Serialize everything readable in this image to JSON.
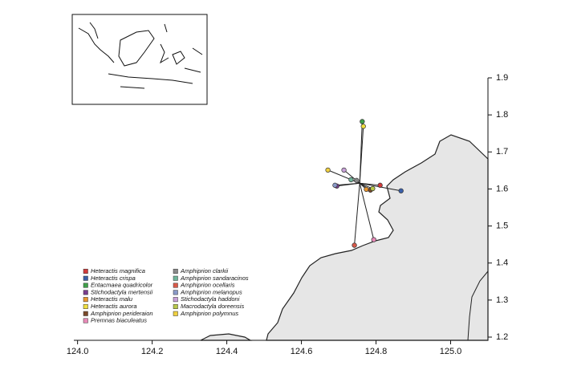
{
  "chart_data": {
    "type": "scatter",
    "xlim": [
      123.99,
      125.1
    ],
    "ylim": [
      1.2,
      1.9
    ],
    "xticks": [
      {
        "value": 124.0,
        "label": "124.0"
      },
      124.2,
      124.4,
      124.6,
      124.8,
      {
        "value": 125.0,
        "label": "125.0"
      }
    ],
    "yticks": [
      1.2,
      1.3,
      1.4,
      1.5,
      1.6,
      1.7,
      1.8,
      1.9
    ],
    "series": [
      {
        "name": "Heteractis magnifica",
        "color": "#d23b3b",
        "x": [
          124.811
        ],
        "y": [
          1.61
        ]
      },
      {
        "name": "Heteractis crispa",
        "color": "#3a5fa8",
        "x": [
          124.867
        ],
        "y": [
          1.595
        ]
      },
      {
        "name": "Entacmaea quadricolor",
        "color": "#3fa04a",
        "x": [
          124.763
        ],
        "y": [
          1.782
        ]
      },
      {
        "name": "Stichodactyla mertensii",
        "color": "#7a3e8e",
        "x": [
          124.695
        ],
        "y": [
          1.608
        ]
      },
      {
        "name": "Heteractis malu",
        "color": "#e8962e",
        "x": [
          124.774
        ],
        "y": [
          1.599
        ]
      },
      {
        "name": "Heteractis aurora",
        "color": "#f0e040",
        "x": [
          124.766
        ],
        "y": [
          1.769
        ]
      },
      {
        "name": "Amphiprion perideraion",
        "color": "#7a4a2a",
        "x": [
          124.785
        ],
        "y": [
          1.597
        ]
      },
      {
        "name": "Premnas biaculeatus",
        "color": "#e88ab8",
        "x": [
          124.794
        ],
        "y": [
          1.463
        ]
      },
      {
        "name": "Amphiprion clarkii",
        "color": "#8a8a8a",
        "x": [
          124.748
        ],
        "y": [
          1.623
        ]
      },
      {
        "name": "Amphiprion sandaracinos",
        "color": "#6fb59a",
        "x": [
          124.733
        ],
        "y": [
          1.625
        ]
      },
      {
        "name": "Amphiprion ocellaris",
        "color": "#d85a4a",
        "x": [
          124.742
        ],
        "y": [
          1.448
        ]
      },
      {
        "name": "Amphiprion melanopus",
        "color": "#8a9ac8",
        "x": [
          124.69
        ],
        "y": [
          1.61
        ]
      },
      {
        "name": "Stichodactyla haddoni",
        "color": "#c8a0d8",
        "x": [
          124.714
        ],
        "y": [
          1.651
        ]
      },
      {
        "name": "Macrodactyla doreensis",
        "color": "#b8c84a",
        "x": [
          124.791
        ],
        "y": [
          1.601
        ]
      },
      {
        "name": "Amphiprion polymnus",
        "color": "#f0d040",
        "x": [
          124.671
        ],
        "y": [
          1.651
        ]
      }
    ]
  }
}
